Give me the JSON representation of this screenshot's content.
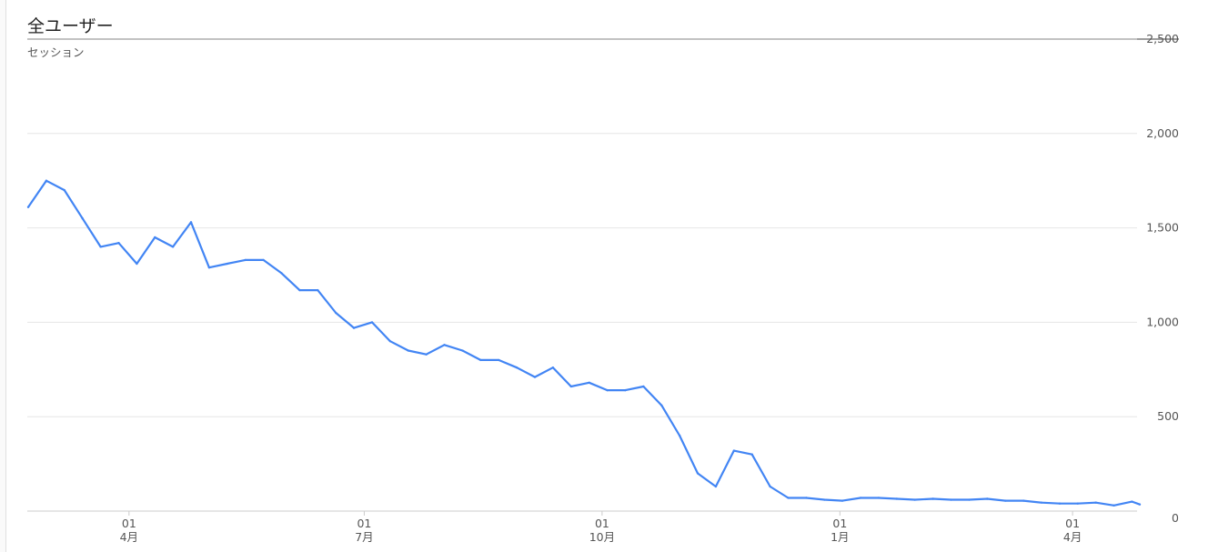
{
  "header": {
    "title": "全ユーザー",
    "metric_label": "セッション"
  },
  "colors": {
    "line": "#4285f4",
    "grid": "#e6e6e6",
    "axis": "#cccccc"
  },
  "chart_data": {
    "type": "line",
    "title": "全ユーザー",
    "ylabel": "セッション",
    "ylim": [
      0,
      2500
    ],
    "y_axis_position": "right",
    "y_ticks": [
      "0",
      "500",
      "1,000",
      "1,500",
      "2,000",
      "2,500"
    ],
    "y_tick_values": [
      0,
      500,
      1000,
      1500,
      2000,
      2500
    ],
    "x_ticks": [
      {
        "date": "04-01",
        "day": "01",
        "month": "4月"
      },
      {
        "date": "07-01",
        "day": "01",
        "month": "7月"
      },
      {
        "date": "10-01",
        "day": "01",
        "month": "10月"
      },
      {
        "date": "01-01",
        "day": "01",
        "month": "1月"
      },
      {
        "date": "04-01",
        "day": "01",
        "month": "4月"
      }
    ],
    "grid": true,
    "series": [
      {
        "x": [
          "02-21",
          "02-28",
          "03-07",
          "03-14",
          "03-21",
          "03-28",
          "04-04",
          "04-11",
          "04-18",
          "04-25",
          "05-02",
          "05-09",
          "05-16",
          "05-23",
          "05-30",
          "06-06",
          "06-13",
          "06-20",
          "06-27",
          "07-04",
          "07-11",
          "07-18",
          "07-25",
          "08-01",
          "08-08",
          "08-15",
          "08-22",
          "08-29",
          "09-05",
          "09-12",
          "09-19",
          "09-26",
          "10-03",
          "10-10",
          "10-17",
          "10-24",
          "10-31",
          "11-07",
          "11-14",
          "11-21",
          "11-28",
          "12-05",
          "12-12",
          "12-19",
          "12-26",
          "01-02",
          "01-09",
          "01-16",
          "01-23",
          "01-30",
          "02-06",
          "02-13",
          "02-20",
          "02-27",
          "03-06",
          "03-13",
          "03-20",
          "03-27",
          "04-03",
          "04-10",
          "04-17",
          "04-24",
          "04-27"
        ],
        "values": [
          1610,
          1750,
          1700,
          1550,
          1400,
          1420,
          1310,
          1450,
          1400,
          1530,
          1290,
          1310,
          1330,
          1330,
          1260,
          1170,
          1170,
          1050,
          970,
          1000,
          900,
          850,
          830,
          880,
          850,
          800,
          800,
          760,
          710,
          760,
          660,
          680,
          640,
          640,
          660,
          560,
          400,
          200,
          130,
          320,
          300,
          130,
          70,
          70,
          60,
          55,
          70,
          70,
          65,
          60,
          65,
          60,
          60,
          65,
          55,
          55,
          45,
          40,
          40,
          45,
          30,
          50,
          35
        ]
      }
    ]
  }
}
